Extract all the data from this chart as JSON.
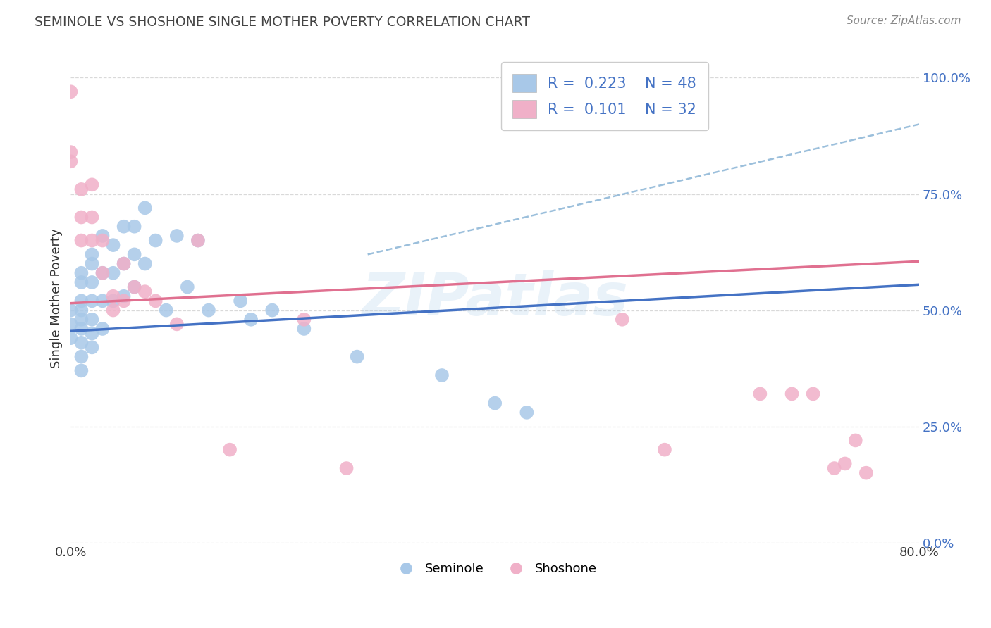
{
  "title": "SEMINOLE VS SHOSHONE SINGLE MOTHER POVERTY CORRELATION CHART",
  "source": "Source: ZipAtlas.com",
  "ylabel": "Single Mother Poverty",
  "xlim": [
    0.0,
    0.8
  ],
  "ylim": [
    0.0,
    1.05
  ],
  "yticks": [
    0.0,
    0.25,
    0.5,
    0.75,
    1.0
  ],
  "ytick_labels": [
    "0.0%",
    "25.0%",
    "50.0%",
    "75.0%",
    "100.0%"
  ],
  "xtick_labels": [
    "0.0%",
    "80.0%"
  ],
  "seminole_color": "#a8c8e8",
  "shoshone_color": "#f0b0c8",
  "seminole_line_color": "#4472c4",
  "shoshone_line_color": "#e07090",
  "dashed_line_color": "#90b8d8",
  "legend_r1": "0.223",
  "legend_n1": "48",
  "legend_r2": "0.101",
  "legend_n2": "32",
  "seminole_line_x0": 0.0,
  "seminole_line_y0": 0.455,
  "seminole_line_x1": 0.8,
  "seminole_line_y1": 0.555,
  "shoshone_line_x0": 0.0,
  "shoshone_line_y0": 0.515,
  "shoshone_line_x1": 0.8,
  "shoshone_line_y1": 0.605,
  "dashed_line_x0": 0.28,
  "dashed_line_y0": 0.62,
  "dashed_line_x1": 0.8,
  "dashed_line_y1": 0.9,
  "seminole_x": [
    0.0,
    0.0,
    0.0,
    0.01,
    0.01,
    0.01,
    0.01,
    0.01,
    0.01,
    0.01,
    0.01,
    0.01,
    0.02,
    0.02,
    0.02,
    0.02,
    0.02,
    0.02,
    0.02,
    0.03,
    0.03,
    0.03,
    0.03,
    0.04,
    0.04,
    0.04,
    0.05,
    0.05,
    0.05,
    0.06,
    0.06,
    0.06,
    0.07,
    0.07,
    0.08,
    0.09,
    0.1,
    0.11,
    0.12,
    0.13,
    0.16,
    0.17,
    0.19,
    0.22,
    0.27,
    0.35,
    0.4,
    0.43
  ],
  "seminole_y": [
    0.5,
    0.47,
    0.44,
    0.58,
    0.56,
    0.52,
    0.5,
    0.48,
    0.46,
    0.43,
    0.4,
    0.37,
    0.62,
    0.6,
    0.56,
    0.52,
    0.48,
    0.45,
    0.42,
    0.66,
    0.58,
    0.52,
    0.46,
    0.64,
    0.58,
    0.52,
    0.68,
    0.6,
    0.53,
    0.68,
    0.62,
    0.55,
    0.72,
    0.6,
    0.65,
    0.5,
    0.66,
    0.55,
    0.65,
    0.5,
    0.52,
    0.48,
    0.5,
    0.46,
    0.4,
    0.36,
    0.3,
    0.28
  ],
  "shoshone_x": [
    0.0,
    0.0,
    0.0,
    0.01,
    0.01,
    0.01,
    0.02,
    0.02,
    0.02,
    0.03,
    0.03,
    0.04,
    0.04,
    0.05,
    0.05,
    0.06,
    0.07,
    0.08,
    0.1,
    0.12,
    0.15,
    0.22,
    0.26,
    0.52,
    0.56,
    0.65,
    0.68,
    0.7,
    0.72,
    0.73,
    0.74,
    0.75
  ],
  "shoshone_y": [
    0.97,
    0.84,
    0.82,
    0.76,
    0.7,
    0.65,
    0.77,
    0.7,
    0.65,
    0.65,
    0.58,
    0.53,
    0.5,
    0.6,
    0.52,
    0.55,
    0.54,
    0.52,
    0.47,
    0.65,
    0.2,
    0.48,
    0.16,
    0.48,
    0.2,
    0.32,
    0.32,
    0.32,
    0.16,
    0.17,
    0.22,
    0.15
  ],
  "watermark_text": "ZIPatlas",
  "background_color": "#ffffff",
  "grid_color": "#d0d0d0"
}
